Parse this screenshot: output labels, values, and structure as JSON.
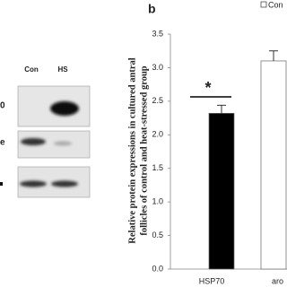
{
  "blot": {
    "lanes": [
      "Con",
      "HS"
    ],
    "row_labels": [
      "0",
      "e"
    ]
  },
  "panel_label": "b",
  "chart_data": {
    "type": "bar",
    "ylabel": [
      "Relative protein expressions in cultured antral",
      "follicles of control and heat-stressed group"
    ],
    "categories": [
      "HSP70",
      "aro"
    ],
    "series": [
      {
        "name": "Con",
        "color": "#ffffff",
        "values": [
          0,
          3.1
        ],
        "errors": [
          null,
          0.15
        ]
      },
      {
        "color": "#000000",
        "values": [
          2.32,
          null
        ],
        "errors": [
          0.12,
          null
        ]
      }
    ],
    "ylim": [
      0,
      3.5
    ],
    "yticks": [
      {
        "value": 0,
        "label": "0.0"
      },
      {
        "value": 0.5,
        "label": "0.5"
      },
      {
        "value": 1,
        "label": "1.0"
      },
      {
        "value": 1.5,
        "label": "1.5"
      },
      {
        "value": 2,
        "label": "2.0"
      },
      {
        "value": 2.5,
        "label": "2.5"
      },
      {
        "value": 3,
        "label": "3.0"
      },
      {
        "value": 3.5,
        "label": "3.5"
      }
    ],
    "annotations": [
      "*"
    ]
  }
}
